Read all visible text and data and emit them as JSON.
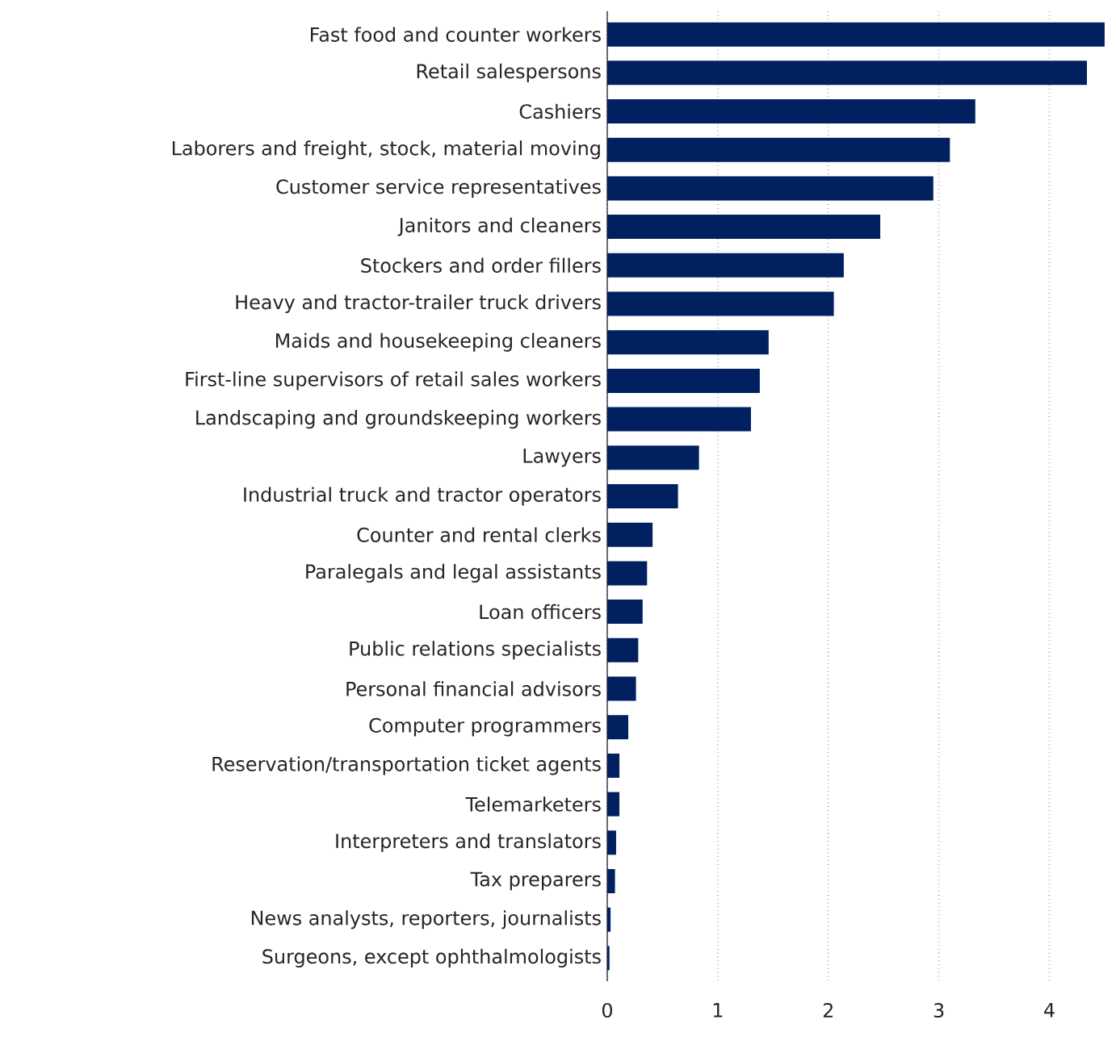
{
  "chart_data": {
    "type": "bar",
    "orientation": "horizontal",
    "categories": [
      "Fast food and counter workers",
      "Retail salespersons",
      "Cashiers",
      "Laborers and freight, stock, material moving",
      "Customer service representatives",
      "Janitors and cleaners",
      "Stockers and order fillers",
      "Heavy and tractor-trailer truck drivers",
      "Maids and housekeeping cleaners",
      "First-line supervisors of retail sales workers",
      "Landscaping and groundskeeping workers",
      "Lawyers",
      "Industrial truck and tractor operators",
      "Counter and rental clerks",
      "Paralegals and legal assistants",
      "Loan officers",
      "Public relations specialists",
      "Personal financial advisors",
      "Computer programmers",
      "Reservation/transportation ticket agents",
      "Telemarketers",
      "Interpreters and translators",
      "Tax preparers",
      "News analysts, reporters, journalists",
      "Surgeons, except ophthalmologists"
    ],
    "values": [
      4.5,
      4.34,
      3.33,
      3.1,
      2.95,
      2.47,
      2.14,
      2.05,
      1.46,
      1.38,
      1.3,
      0.83,
      0.64,
      0.41,
      0.36,
      0.32,
      0.28,
      0.26,
      0.19,
      0.11,
      0.11,
      0.08,
      0.07,
      0.03,
      0.02
    ],
    "color": "#002060",
    "xlim": [
      0,
      4.53
    ],
    "xticks": [
      0,
      1,
      2,
      3,
      4
    ],
    "grid": "x"
  }
}
